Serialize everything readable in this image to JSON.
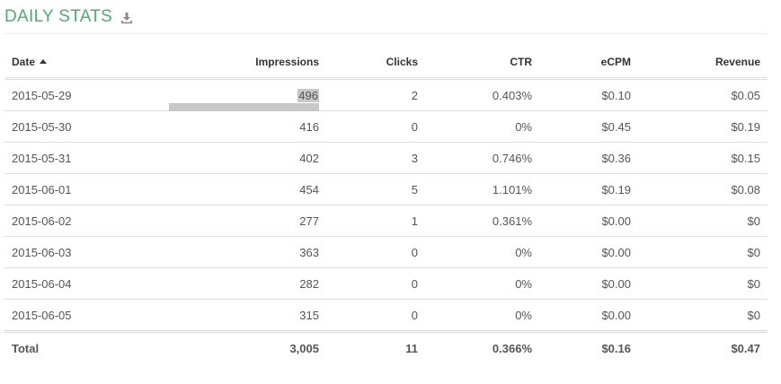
{
  "header": {
    "title": "DAILY STATS",
    "download_icon": "download-icon"
  },
  "colors": {
    "title": "#4cae6e",
    "selection": "#c8c8c8",
    "rule": "#dedede"
  },
  "table": {
    "columns": [
      {
        "label": "Date",
        "sort": "ascending"
      },
      {
        "label": "Impressions"
      },
      {
        "label": "Clicks"
      },
      {
        "label": "CTR"
      },
      {
        "label": "eCPM"
      },
      {
        "label": "Revenue"
      }
    ],
    "rows": [
      {
        "date": "2015-05-29",
        "impressions": "496",
        "clicks": "2",
        "ctr": "0.403%",
        "ecpm": "$0.10",
        "revenue": "$0.05"
      },
      {
        "date": "2015-05-30",
        "impressions": "416",
        "clicks": "0",
        "ctr": "0%",
        "ecpm": "$0.45",
        "revenue": "$0.19"
      },
      {
        "date": "2015-05-31",
        "impressions": "402",
        "clicks": "3",
        "ctr": "0.746%",
        "ecpm": "$0.36",
        "revenue": "$0.15"
      },
      {
        "date": "2015-06-01",
        "impressions": "454",
        "clicks": "5",
        "ctr": "1.101%",
        "ecpm": "$0.19",
        "revenue": "$0.08"
      },
      {
        "date": "2015-06-02",
        "impressions": "277",
        "clicks": "1",
        "ctr": "0.361%",
        "ecpm": "$0.00",
        "revenue": "$0"
      },
      {
        "date": "2015-06-03",
        "impressions": "363",
        "clicks": "0",
        "ctr": "0%",
        "ecpm": "$0.00",
        "revenue": "$0"
      },
      {
        "date": "2015-06-04",
        "impressions": "282",
        "clicks": "0",
        "ctr": "0%",
        "ecpm": "$0.00",
        "revenue": "$0"
      },
      {
        "date": "2015-06-05",
        "impressions": "315",
        "clicks": "0",
        "ctr": "0%",
        "ecpm": "$0.00",
        "revenue": "$0"
      }
    ],
    "total": {
      "label": "Total",
      "impressions": "3,005",
      "clicks": "11",
      "ctr": "0.366%",
      "ecpm": "$0.16",
      "revenue": "$0.47"
    }
  }
}
